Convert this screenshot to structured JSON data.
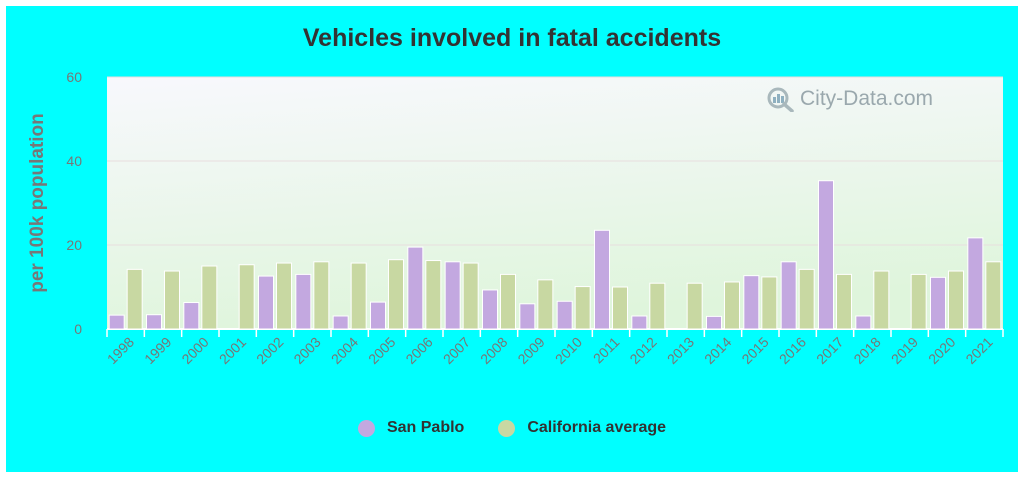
{
  "chart_data": {
    "type": "bar",
    "title": "Vehicles involved in fatal accidents",
    "ylabel": "per 100k population",
    "xlabel": "",
    "ylim": [
      0,
      60
    ],
    "yticks": [
      0,
      20,
      40,
      60
    ],
    "categories": [
      "1998",
      "1999",
      "2000",
      "2001",
      "2002",
      "2003",
      "2004",
      "2005",
      "2006",
      "2007",
      "2008",
      "2009",
      "2010",
      "2011",
      "2012",
      "2013",
      "2014",
      "2015",
      "2016",
      "2017",
      "2018",
      "2019",
      "2020",
      "2021"
    ],
    "series": [
      {
        "name": "San Pablo",
        "color": "#c3a8e0",
        "values": [
          3.3,
          3.4,
          6.3,
          null,
          12.6,
          13.0,
          3.1,
          6.4,
          19.5,
          16.0,
          9.3,
          6.0,
          6.6,
          23.5,
          3.1,
          null,
          3.0,
          12.7,
          16.0,
          35.3,
          3.1,
          null,
          12.3,
          21.7
        ]
      },
      {
        "name": "California average",
        "color": "#c8d8a2",
        "values": [
          14.2,
          13.8,
          15.0,
          15.3,
          15.7,
          16.0,
          15.7,
          16.5,
          16.3,
          15.7,
          13.0,
          11.7,
          10.1,
          10.0,
          10.9,
          10.9,
          11.2,
          12.4,
          14.2,
          13.0,
          13.8,
          13.0,
          13.8,
          16.0
        ]
      }
    ],
    "grid": true,
    "legend_position": "bottom"
  },
  "watermark": {
    "text": "City-Data.com",
    "icon": "city-data-logo-icon"
  },
  "colors": {
    "background": "#00ffff",
    "plot_top": "#f8f8fd",
    "plot_bottom": "#e2f6e0",
    "gridline": "#e8dede",
    "axis_text": "#777777"
  }
}
